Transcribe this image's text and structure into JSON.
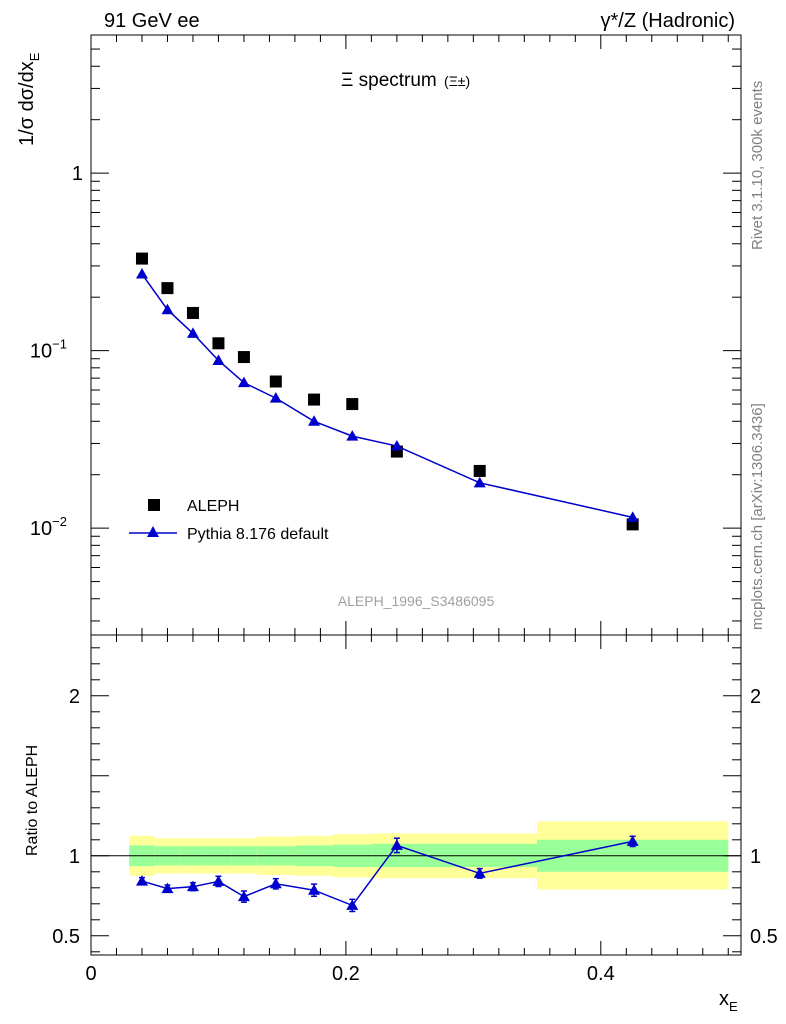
{
  "header": {
    "left": "91 GeV ee",
    "right": "γ*/Z (Hadronic)",
    "side_right": "Rivet 3.1.10,  300k events",
    "side_bottom": "mcplots.cern.ch [arXiv:1306.3436]"
  },
  "chart_data": [
    {
      "type": "scatter",
      "title": "Ξ spectrum",
      "title_suffix": "(Ξ±)",
      "yaxis_label": "1/σ dσ/dx",
      "yaxis_label_sub": "E",
      "yscale": "log",
      "ylim": [
        0.0025,
        6.0
      ],
      "xlim": [
        0,
        0.51
      ],
      "yticks": [
        {
          "value": 1,
          "label": "1"
        },
        {
          "value": 0.1,
          "label": "10",
          "exp": "−1"
        },
        {
          "value": 0.01,
          "label": "10",
          "exp": "−2"
        }
      ],
      "watermark": "ALEPH_1996_S3486095",
      "legend": [
        {
          "name": "ALEPH",
          "marker": "square",
          "color": "#000000"
        },
        {
          "name": "Pythia 8.176 default",
          "marker": "triangle",
          "color": "#0000cc"
        }
      ],
      "legend_position": "lower-left",
      "series": [
        {
          "name": "ALEPH",
          "x": [
            0.04,
            0.06,
            0.08,
            0.1,
            0.12,
            0.145,
            0.175,
            0.205,
            0.24,
            0.305,
            0.425
          ],
          "y": [
            0.33,
            0.225,
            0.163,
            0.11,
            0.092,
            0.067,
            0.053,
            0.05,
            0.027,
            0.021,
            0.0105
          ]
        },
        {
          "name": "Pythia 8.176 default",
          "x": [
            0.04,
            0.06,
            0.08,
            0.1,
            0.12,
            0.145,
            0.175,
            0.205,
            0.24,
            0.305,
            0.425
          ],
          "y": [
            0.27,
            0.17,
            0.125,
            0.088,
            0.066,
            0.054,
            0.04,
            0.033,
            0.029,
            0.018,
            0.0115
          ]
        }
      ]
    },
    {
      "type": "scatter",
      "yaxis_label": "Ratio to ALEPH",
      "xaxis_label": "x",
      "xaxis_label_sub": "E",
      "ylim": [
        0.38,
        2.38
      ],
      "xlim": [
        0,
        0.51
      ],
      "xticks": [
        {
          "value": 0,
          "label": "0"
        },
        {
          "value": 0.2,
          "label": "0.2"
        },
        {
          "value": 0.4,
          "label": "0.4"
        }
      ],
      "yticks": [
        {
          "value": 2,
          "label": "2"
        },
        {
          "value": 1,
          "label": "1"
        },
        {
          "value": 0.5,
          "label": "0.5"
        }
      ],
      "reference_line": 1,
      "bands": [
        {
          "x0": 0.03,
          "x1": 0.05,
          "inner": [
            0.935,
            1.065
          ],
          "outer": [
            0.875,
            1.125
          ]
        },
        {
          "x0": 0.05,
          "x1": 0.07,
          "inner": [
            0.94,
            1.06
          ],
          "outer": [
            0.89,
            1.11
          ]
        },
        {
          "x0": 0.07,
          "x1": 0.09,
          "inner": [
            0.94,
            1.06
          ],
          "outer": [
            0.89,
            1.11
          ]
        },
        {
          "x0": 0.09,
          "x1": 0.11,
          "inner": [
            0.94,
            1.06
          ],
          "outer": [
            0.89,
            1.11
          ]
        },
        {
          "x0": 0.11,
          "x1": 0.13,
          "inner": [
            0.94,
            1.06
          ],
          "outer": [
            0.89,
            1.11
          ]
        },
        {
          "x0": 0.13,
          "x1": 0.16,
          "inner": [
            0.94,
            1.06
          ],
          "outer": [
            0.88,
            1.12
          ]
        },
        {
          "x0": 0.16,
          "x1": 0.19,
          "inner": [
            0.935,
            1.065
          ],
          "outer": [
            0.875,
            1.125
          ]
        },
        {
          "x0": 0.19,
          "x1": 0.22,
          "inner": [
            0.93,
            1.07
          ],
          "outer": [
            0.865,
            1.135
          ]
        },
        {
          "x0": 0.22,
          "x1": 0.35,
          "inner": [
            0.93,
            1.075
          ],
          "outer": [
            0.86,
            1.14
          ]
        },
        {
          "x0": 0.35,
          "x1": 0.5,
          "inner": [
            0.9,
            1.1
          ],
          "outer": [
            0.79,
            1.215
          ]
        }
      ],
      "series": [
        {
          "name": "Pythia 8.176 default / ALEPH",
          "x": [
            0.04,
            0.06,
            0.08,
            0.1,
            0.12,
            0.145,
            0.175,
            0.205,
            0.24,
            0.305,
            0.425
          ],
          "y": [
            0.842,
            0.795,
            0.807,
            0.84,
            0.745,
            0.825,
            0.785,
            0.69,
            1.065,
            0.89,
            1.09
          ],
          "err": [
            0.022,
            0.022,
            0.025,
            0.032,
            0.035,
            0.032,
            0.038,
            0.038,
            0.045,
            0.03,
            0.032
          ]
        }
      ]
    }
  ]
}
